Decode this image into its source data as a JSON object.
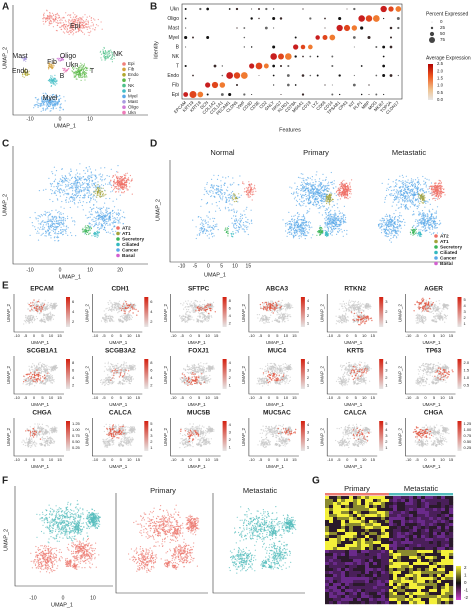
{
  "panel_a": {
    "letter": "A",
    "cluster_labels": [
      "Epi",
      "Mast",
      "Endo",
      "Fib",
      "Oligo",
      "Ukn",
      "NK",
      "B",
      "T",
      "Myel"
    ],
    "legend": [
      "Epi",
      "Fib",
      "Endo",
      "T",
      "NK",
      "B",
      "Myel",
      "Mast",
      "Oligo",
      "Ukn"
    ],
    "x_label": "UMAP_1",
    "y_label": "UMAP_2",
    "x_ticks": [
      "-10",
      "0",
      "10"
    ]
  },
  "panel_b": {
    "letter": "B",
    "y_label": "Identity",
    "x_label": "Features",
    "rows": [
      "Ukn",
      "Oligo",
      "Mast",
      "Myel",
      "B",
      "NK",
      "T",
      "Endo",
      "Fib",
      "Epi"
    ],
    "features": [
      "EPCAM",
      "KRT19",
      "KRT18",
      "DCN",
      "COL1A2",
      "COL1A1",
      "PECAM1",
      "CLDN5",
      "VWF",
      "CD3D",
      "CD3E",
      "CD2",
      "GNLY",
      "NKG7",
      "KLRD1",
      "CD79A",
      "MS4A1",
      "CD19",
      "LYZ",
      "CD68",
      "CD14",
      "TPSAB1",
      "CPA3",
      "KIT",
      "PLP1",
      "MBP",
      "MOG",
      "MKI67",
      "TOP2A",
      "CLDN17"
    ],
    "size_legend_title": "Percent Expressed",
    "size_legend": [
      "0",
      "25",
      "50",
      "75"
    ],
    "color_legend_title": "Average Expression",
    "color_legend": [
      "2.5",
      "2.0",
      "1.5",
      "1.0",
      "0.5",
      "0.0"
    ]
  },
  "panel_c": {
    "letter": "C",
    "legend": [
      "AT2",
      "AT1",
      "Secretory",
      "Ciliated",
      "Cancer",
      "Basal"
    ],
    "x_label": "UMAP_1",
    "y_label": "UMAP_2",
    "x_ticks": [
      "-10",
      "0",
      "10",
      "20"
    ]
  },
  "panel_d": {
    "letter": "D",
    "titles": [
      "Normal",
      "Primary",
      "Metastatic"
    ],
    "legend": [
      "AT2",
      "AT1",
      "Secretory",
      "Ciliated",
      "Cancer",
      "Basal"
    ],
    "x_label": "UMAP_1",
    "y_label": "UMAP_2",
    "x_ticks": [
      "-10",
      "-5",
      "0",
      "5",
      "10",
      "15"
    ]
  },
  "panel_e": {
    "letter": "E",
    "x_label": "UMAP_1",
    "y_label": "UMAP_2",
    "x_ticks": [
      "-10",
      "-5",
      "0",
      "5",
      "10",
      "15"
    ],
    "plots": [
      {
        "gene": "EPCAM",
        "scale": [
          "2",
          "4",
          "6"
        ]
      },
      {
        "gene": "CDH1",
        "scale": [
          "2",
          "4",
          "6"
        ]
      },
      {
        "gene": "SFTPC",
        "scale": [
          "2",
          "4",
          "6",
          "8"
        ]
      },
      {
        "gene": "ABCA3",
        "scale": [
          "1",
          "2",
          "3",
          "4"
        ]
      },
      {
        "gene": "RTKN2",
        "scale": [
          "1",
          "2",
          "3"
        ]
      },
      {
        "gene": "AGER",
        "scale": [
          "1",
          "2",
          "3",
          "4",
          "5"
        ]
      },
      {
        "gene": "SCGB1A1",
        "scale": [
          "2",
          "4",
          "6",
          "8"
        ]
      },
      {
        "gene": "SCGB3A2",
        "scale": [
          "2",
          "4",
          "6",
          "8"
        ]
      },
      {
        "gene": "FOXJ1",
        "scale": [
          "1",
          "2",
          "3",
          "4"
        ]
      },
      {
        "gene": "MUC4",
        "scale": [
          "1",
          "2",
          "3",
          "4"
        ]
      },
      {
        "gene": "KRT5",
        "scale": [
          "1",
          "2",
          "3",
          "4"
        ]
      },
      {
        "gene": "TP63",
        "scale": [
          "0.5",
          "1.0",
          "1.5",
          "2.0"
        ]
      },
      {
        "gene": "CHGA",
        "scale": [
          "0.25",
          "0.50",
          "0.75",
          "1.00",
          "1.25"
        ]
      },
      {
        "gene": "CALCA",
        "scale": [
          "1",
          "2",
          "3",
          "4",
          "5"
        ]
      },
      {
        "gene": "MUC5B",
        "scale": [
          "1",
          "2",
          "3",
          "4"
        ]
      },
      {
        "gene": "MUC5AC",
        "scale": [
          "1",
          "2",
          "3",
          "4"
        ]
      },
      {
        "gene": "CALCA",
        "scale": [
          "1",
          "2",
          "3",
          "4",
          "5"
        ]
      },
      {
        "gene": "CHGA",
        "scale": [
          "0.25",
          "0.50",
          "0.75",
          "1.00",
          "1.25"
        ]
      }
    ]
  },
  "panel_f": {
    "letter": "F",
    "titles": [
      "Primary",
      "Metastatic"
    ],
    "x_label": "UMAP_1",
    "y_label": "UMAP_2",
    "x_ticks": [
      "-10",
      "0",
      "10"
    ]
  },
  "panel_g": {
    "letter": "G",
    "titles": [
      "Primary",
      "Metastatic"
    ],
    "scale": [
      "2",
      "1",
      "0",
      "-1",
      "-2"
    ]
  }
}
